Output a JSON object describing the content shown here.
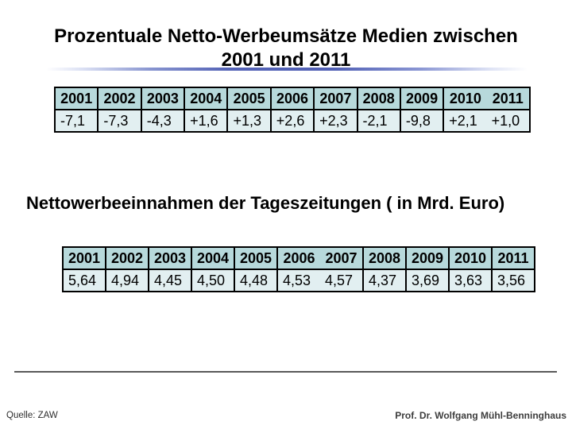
{
  "slide": {
    "title_line1": "Prozentuale Netto-Werbeumsätze Medien zwischen",
    "title_line2": "2001 und 2011",
    "subtitle": "Nettowerbeeinnahmen der Tageszeitungen ( in Mrd. Euro)",
    "footer": {
      "source": "Quelle: ZAW",
      "author": "Prof. Dr. Wolfgang Mühl-Benninghaus"
    }
  },
  "colors": {
    "table_header_bg": "#b7d9db",
    "table_row_bg": "#e2eff1",
    "table_border": "#000000",
    "title_divider_blue": "#5160b5",
    "footer_rule_gray": "#595959",
    "background": "#ffffff"
  },
  "chart_data": [
    {
      "type": "table",
      "title": "Prozentuale Netto-Werbeumsätze Medien zwischen 2001 und 2011",
      "unit": "percent change",
      "categories": [
        "2001",
        "2002",
        "2003",
        "2004",
        "2005",
        "2006",
        "2007",
        "2008",
        "2009",
        "2010",
        "2011"
      ],
      "values": [
        "-7,1",
        "-7,3",
        "-4,3",
        "+1,6",
        "+1,3",
        "+2,6",
        "+2,3",
        "-2,1",
        "-9,8",
        "+2,1",
        "+1,0"
      ]
    },
    {
      "type": "table",
      "title": "Nettowerbeeinnahmen der Tageszeitungen ( in Mrd. Euro)",
      "unit": "Mrd. Euro",
      "categories": [
        "2001",
        "2002",
        "2003",
        "2004",
        "2005",
        "2006",
        "2007",
        "2008",
        "2009",
        "2010",
        "2011"
      ],
      "values": [
        "5,64",
        "4,94",
        "4,45",
        "4,50",
        "4,48",
        "4,53",
        "4,57",
        "4,37",
        "3,69",
        "3,63",
        "3,56"
      ]
    }
  ]
}
